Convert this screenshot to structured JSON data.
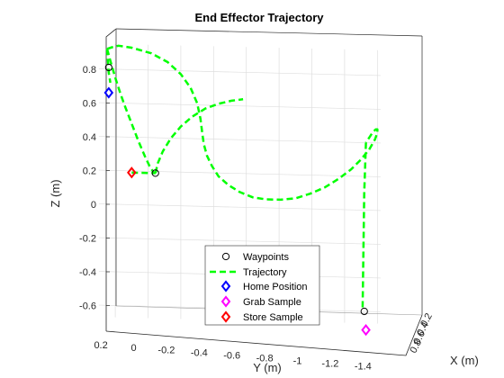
{
  "chart_data": {
    "type": "line",
    "projection": "3d",
    "title": "End Effector Trajectory",
    "xlabel": "Y (m)",
    "ylabel": "Z (m)",
    "zlabel": "X (m)",
    "y_ticks": [
      "0.2",
      "0",
      "-0.2",
      "-0.4",
      "-0.6",
      "-0.8",
      "-1",
      "-1.2",
      "-1.4"
    ],
    "z_ticks": [
      "0.8",
      "0.6",
      "0.4",
      "0.2",
      "0",
      "-0.2",
      "-0.4",
      "-0.6"
    ],
    "depth_ticks": [
      "0.2",
      "0.4",
      "0.6",
      "0.8"
    ],
    "zlim": [
      -0.67,
      0.95
    ],
    "ylim": [
      0.3,
      -1.42
    ],
    "grid": true,
    "legend_position": "bottom-center",
    "legend": [
      "Waypoints",
      "Trajectory",
      "Home Position",
      "Grab Sample",
      "Store Sample"
    ],
    "trajectory": {
      "name": "Trajectory",
      "color": "#00ff00",
      "style": "dashed",
      "y": [
        0.25,
        0.22,
        0.18,
        0.1,
        -0.02,
        -0.12,
        -0.2,
        -0.26,
        -0.3,
        -0.32,
        -0.33,
        -0.34,
        -0.36,
        -0.39,
        -0.43,
        -0.49,
        -0.56,
        -0.64,
        -0.72,
        -0.81,
        -0.9,
        -0.99,
        -1.08,
        -1.16,
        -1.24,
        -1.3,
        -1.35,
        -1.385,
        -1.4,
        -1.4,
        -1.39,
        -1.37,
        -1.35,
        -1.33
      ],
      "z": [
        0.92,
        0.93,
        0.94,
        0.93,
        0.9,
        0.85,
        0.78,
        0.7,
        0.61,
        0.52,
        0.44,
        0.37,
        0.3,
        0.24,
        0.18,
        0.13,
        0.09,
        0.06,
        0.05,
        0.05,
        0.06,
        0.09,
        0.13,
        0.18,
        0.24,
        0.3,
        0.36,
        0.42,
        0.46,
        0.48,
        0.48,
        0.46,
        0.43,
        0.4
      ]
    },
    "segments": [
      {
        "y": [
          0.25,
          0.23,
          0.2,
          0.17,
          0.14,
          0.1,
          0.06,
          0.02,
          -0.01,
          -0.03,
          -0.04,
          -0.045
        ],
        "z": [
          0.92,
          0.85,
          0.75,
          0.66,
          0.58,
          0.48,
          0.38,
          0.29,
          0.23,
          0.2,
          0.19,
          0.19
        ]
      },
      {
        "y": [
          0.25,
          0.245,
          0.24,
          0.23
        ],
        "z": [
          0.92,
          0.85,
          0.78,
          0.72
        ]
      },
      {
        "y": [
          0.1,
          0.08,
          0.05,
          0.02,
          -0.01,
          -0.03,
          -0.045
        ],
        "z": [
          0.19,
          0.19,
          0.19,
          0.19,
          0.19,
          0.19,
          0.19
        ]
      },
      {
        "y": [
          -0.045,
          -0.06,
          -0.09,
          -0.14,
          -0.2,
          -0.27,
          -0.35,
          -0.43,
          -0.51,
          -0.58
        ],
        "z": [
          0.19,
          0.25,
          0.32,
          0.4,
          0.47,
          0.53,
          0.58,
          0.61,
          0.63,
          0.64
        ]
      },
      {
        "y": [
          -1.33,
          -1.32,
          -1.31
        ],
        "z": [
          0.4,
          0.1,
          -0.58
        ]
      }
    ],
    "waypoints": {
      "name": "Waypoints",
      "points": [
        {
          "y": 0.24,
          "z": 0.81
        },
        {
          "y": -0.045,
          "z": 0.19
        },
        {
          "y": -1.32,
          "z": -0.6
        }
      ]
    },
    "markers": [
      {
        "name": "Home Position",
        "color": "#0000ff",
        "y": 0.24,
        "z": 0.66
      },
      {
        "name": "Grab Sample",
        "color": "#ff00ff",
        "y": -1.33,
        "z": -0.71
      },
      {
        "name": "Store Sample",
        "color": "#ff0000",
        "y": 0.1,
        "z": 0.19
      }
    ]
  }
}
